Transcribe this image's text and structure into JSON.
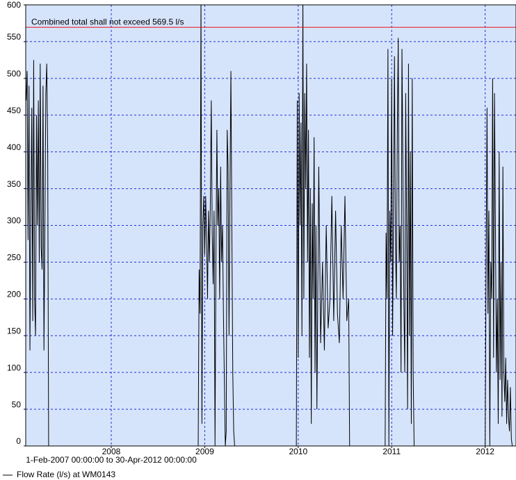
{
  "chart_data": {
    "type": "line",
    "subtitle": "1-Feb-2007 00:00:00 to 30-Apr-2012 00:00:00",
    "x": [
      2007.09,
      2007.1,
      2007.11,
      2007.12,
      2007.13,
      2007.14,
      2007.15,
      2007.16,
      2007.17,
      2007.18,
      2007.19,
      2007.2,
      2007.21,
      2007.22,
      2007.23,
      2007.24,
      2007.25,
      2007.26,
      2007.27,
      2007.28,
      2007.29,
      2007.3,
      2007.31,
      2007.32,
      2007.33,
      2008.93,
      2008.94,
      2008.95,
      2008.96,
      2008.97,
      2008.98,
      2008.99,
      2009.0,
      2009.01,
      2009.02,
      2009.03,
      2009.04,
      2009.05,
      2009.06,
      2009.07,
      2009.08,
      2009.09,
      2009.1,
      2009.11,
      2009.12,
      2009.13,
      2009.14,
      2009.15,
      2009.16,
      2009.17,
      2009.18,
      2009.19,
      2009.2,
      2009.21,
      2009.22,
      2009.23,
      2009.24,
      2009.25,
      2009.26,
      2009.27,
      2009.28,
      2009.29,
      2009.3,
      2009.31,
      2009.32,
      2009.98,
      2009.99,
      2010.0,
      2010.01,
      2010.02,
      2010.03,
      2010.04,
      2010.05,
      2010.06,
      2010.07,
      2010.08,
      2010.09,
      2010.1,
      2010.11,
      2010.12,
      2010.13,
      2010.14,
      2010.15,
      2010.16,
      2010.17,
      2010.18,
      2010.19,
      2010.2,
      2010.22,
      2010.24,
      2010.26,
      2010.28,
      2010.3,
      2010.32,
      2010.34,
      2010.36,
      2010.38,
      2010.4,
      2010.42,
      2010.44,
      2010.46,
      2010.48,
      2010.5,
      2010.52,
      2010.54,
      2010.55,
      2010.93,
      2010.94,
      2010.95,
      2010.96,
      2010.97,
      2010.98,
      2010.99,
      2011.0,
      2011.01,
      2011.02,
      2011.03,
      2011.04,
      2011.05,
      2011.06,
      2011.07,
      2011.08,
      2011.09,
      2011.1,
      2011.11,
      2011.12,
      2011.13,
      2011.14,
      2011.15,
      2011.16,
      2011.17,
      2011.18,
      2011.19,
      2011.2,
      2011.21,
      2011.22,
      2011.23,
      2011.24,
      2012.0,
      2012.01,
      2012.02,
      2012.03,
      2012.04,
      2012.05,
      2012.06,
      2012.07,
      2012.08,
      2012.09,
      2012.1,
      2012.11,
      2012.12,
      2012.13,
      2012.14,
      2012.15,
      2012.16,
      2012.17,
      2012.18,
      2012.19,
      2012.2,
      2012.21,
      2012.22,
      2012.23,
      2012.24,
      2012.25,
      2012.26,
      2012.27,
      2012.28,
      2012.29,
      2012.3
    ],
    "series": [
      {
        "name": "Flow Rate (l/s) at WM0143",
        "color": "#000000",
        "values": [
          470,
          510,
          280,
          490,
          130,
          320,
          460,
          170,
          525,
          200,
          150,
          450,
          300,
          470,
          250,
          520,
          270,
          240,
          490,
          130,
          300,
          480,
          520,
          400,
          0,
          0,
          240,
          180,
          610,
          30,
          300,
          340,
          260,
          340,
          280,
          200,
          320,
          250,
          330,
          470,
          290,
          220,
          320,
          0,
          260,
          430,
          300,
          350,
          200,
          380,
          250,
          300,
          180,
          90,
          0,
          20,
          430,
          380,
          150,
          350,
          510,
          300,
          100,
          20,
          0,
          0,
          470,
          120,
          480,
          300,
          440,
          150,
          610,
          200,
          480,
          350,
          520,
          250,
          430,
          120,
          350,
          30,
          330,
          200,
          420,
          100,
          300,
          50,
          380,
          140,
          250,
          130,
          300,
          160,
          200,
          340,
          170,
          320,
          180,
          140,
          300,
          200,
          340,
          170,
          200,
          0,
          0,
          290,
          200,
          540,
          0,
          320,
          250,
          500,
          150,
          330,
          530,
          280,
          200,
          420,
          555,
          250,
          300,
          100,
          540,
          380,
          200,
          100,
          480,
          300,
          50,
          520,
          150,
          400,
          30,
          500,
          100,
          0,
          0,
          240,
          460,
          180,
          320,
          0,
          250,
          200,
          500,
          120,
          480,
          300,
          100,
          200,
          30,
          400,
          90,
          250,
          40,
          380,
          100,
          60,
          120,
          30,
          90,
          40,
          20,
          80,
          10,
          0,
          0
        ]
      }
    ],
    "xlim": [
      2007.085,
      2012.33
    ],
    "xticks": [
      2008,
      2009,
      2010,
      2011,
      2012
    ],
    "ylim": [
      0,
      600
    ],
    "yticks": [
      0,
      50,
      100,
      150,
      200,
      250,
      300,
      350,
      400,
      450,
      500,
      550,
      600
    ],
    "grid": true,
    "background": "#d6e4fb",
    "grid_color": "#1f2fd8",
    "limit_line": {
      "label": "Combined total shall not exceed 569.5 l/s",
      "value": 569.5,
      "color": "#e8101e"
    }
  }
}
